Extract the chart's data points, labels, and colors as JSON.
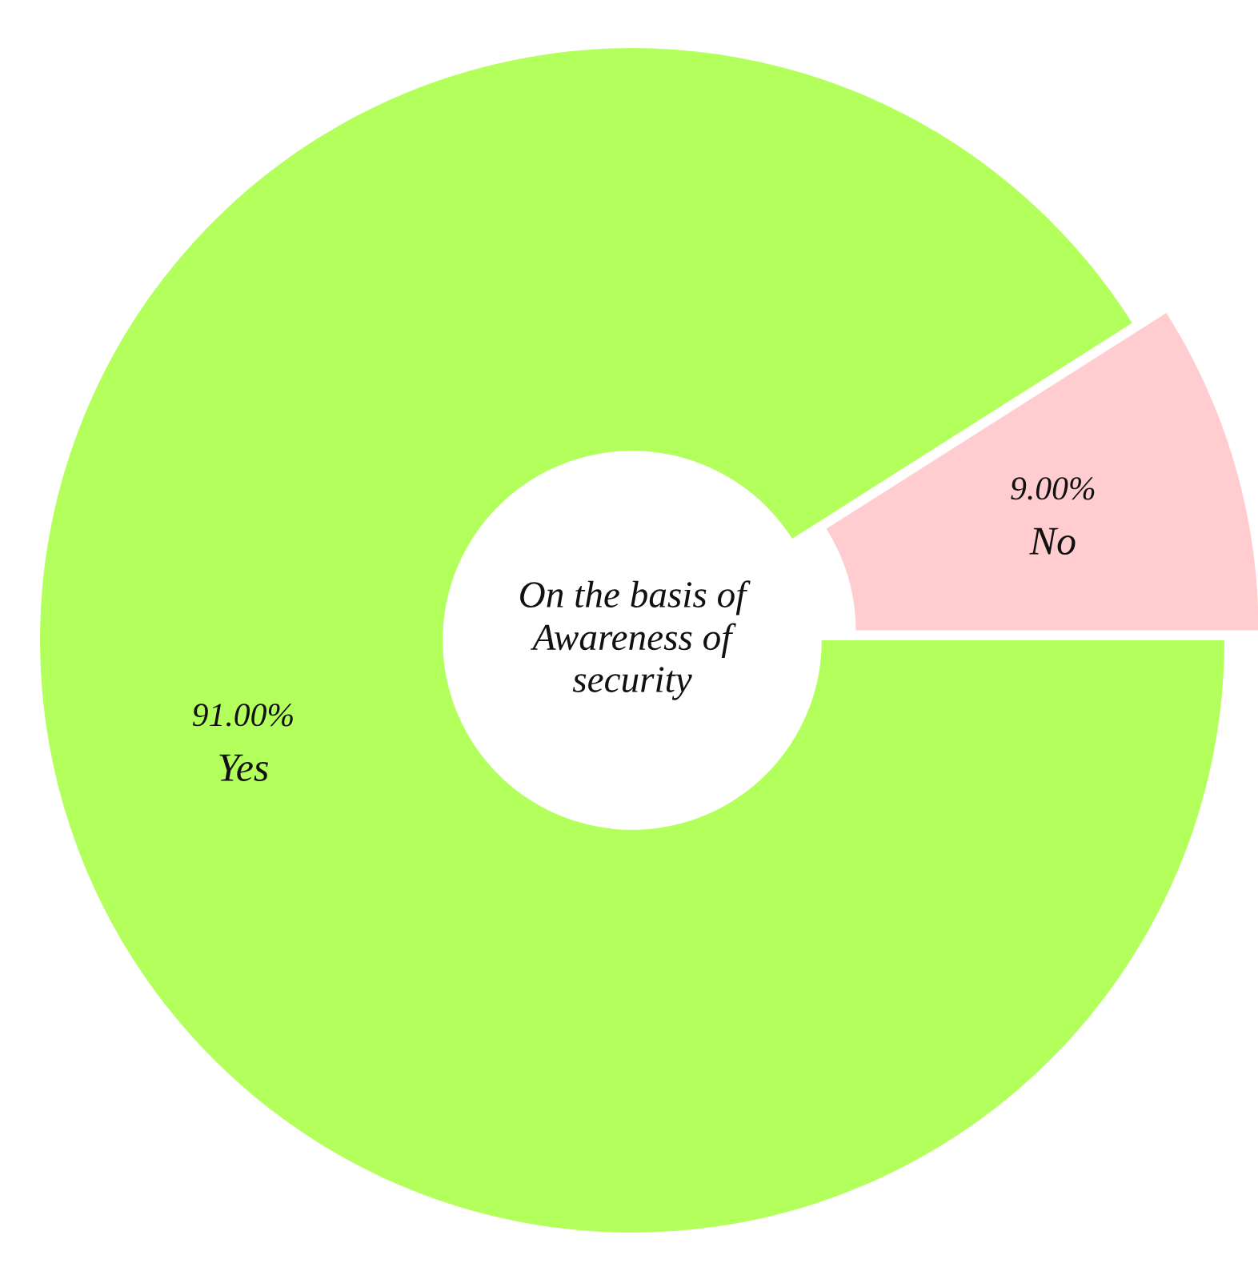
{
  "chart_data": {
    "type": "donut",
    "title": "On the basis of Awareness of security",
    "categories": [
      "Yes",
      "No"
    ],
    "values": [
      91,
      9
    ],
    "colors": [
      "#b3ff5c",
      "#ffccd0"
    ],
    "value_labels": [
      "91.00%",
      "9.00%"
    ]
  }
}
